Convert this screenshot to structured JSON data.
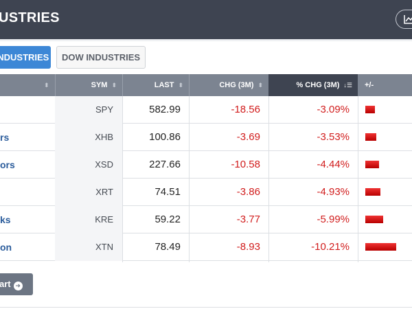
{
  "header": {
    "title": "USTRIES"
  },
  "tabs": [
    {
      "label": "INDUSTRIES",
      "active": true
    },
    {
      "label": "DOW INDUSTRIES",
      "active": false
    }
  ],
  "table": {
    "columns": {
      "name": "",
      "sym": "SYM",
      "last": "LAST",
      "chg": "CHG (3M)",
      "pct": "% CHG (3M)",
      "bar": "+/-"
    },
    "sorted_column": "% CHG (3M)",
    "rows": [
      {
        "name": "",
        "sym": "SPY",
        "last": "582.99",
        "chg": "-18.56",
        "pct": "-3.09%",
        "pct_value": -3.09
      },
      {
        "name": "rs",
        "sym": "XHB",
        "last": "100.86",
        "chg": "-3.69",
        "pct": "-3.53%",
        "pct_value": -3.53
      },
      {
        "name": "ors",
        "sym": "XSD",
        "last": "227.66",
        "chg": "-10.58",
        "pct": "-4.44%",
        "pct_value": -4.44
      },
      {
        "name": "",
        "sym": "XRT",
        "last": "74.51",
        "chg": "-3.86",
        "pct": "-4.93%",
        "pct_value": -4.93
      },
      {
        "name": "ks",
        "sym": "KRE",
        "last": "59.22",
        "chg": "-3.77",
        "pct": "-5.99%",
        "pct_value": -5.99
      },
      {
        "name": "on",
        "sym": "XTN",
        "last": "78.49",
        "chg": "-8.93",
        "pct": "-10.21%",
        "pct_value": -10.21
      }
    ]
  },
  "chart_button": {
    "label": "art"
  },
  "colors": {
    "header_bg": "#3e4451",
    "accent": "#3c87d6",
    "negative": "#d11c1c",
    "link": "#2c5d9c"
  },
  "icons": {
    "header_button": "line-chart-icon",
    "chart_button": "arrow-right-circle-icon"
  }
}
